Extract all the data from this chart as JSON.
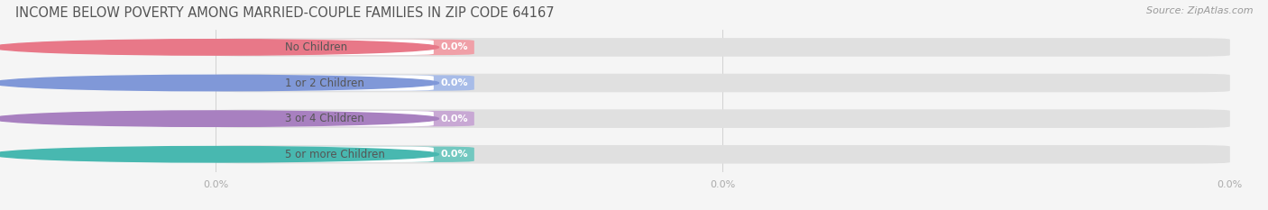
{
  "title": "INCOME BELOW POVERTY AMONG MARRIED-COUPLE FAMILIES IN ZIP CODE 64167",
  "source": "Source: ZipAtlas.com",
  "categories": [
    "No Children",
    "1 or 2 Children",
    "3 or 4 Children",
    "5 or more Children"
  ],
  "values": [
    0.0,
    0.0,
    0.0,
    0.0
  ],
  "bar_colors": [
    "#f0a0a8",
    "#a8bce8",
    "#c8a8d4",
    "#72c8c0"
  ],
  "circle_colors": [
    "#e87888",
    "#8098d8",
    "#a880c0",
    "#48b8b0"
  ],
  "background_color": "#f5f5f5",
  "bar_bg_color": "#e0e0e0",
  "white_pill_color": "#ffffff",
  "tick_label_color": "#aaaaaa",
  "title_color": "#555555",
  "source_color": "#999999",
  "category_text_color": "#555555",
  "value_text_color": "#ffffff",
  "title_fontsize": 10.5,
  "source_fontsize": 8,
  "cat_fontsize": 8.5,
  "val_fontsize": 8,
  "tick_fontsize": 8
}
